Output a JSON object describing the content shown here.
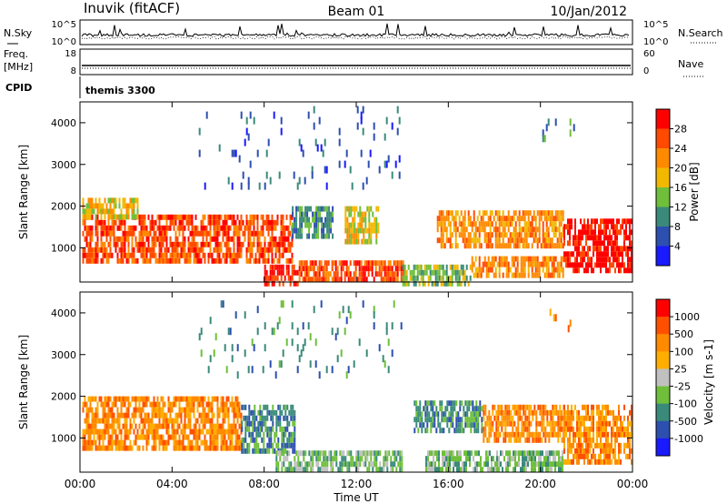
{
  "header": {
    "station": "Inuvik (fitACF)",
    "beam": "Beam 01",
    "date": "10/Jan/2012"
  },
  "noise_panel": {
    "left_label": "N.Sky",
    "right_label": "N.Search",
    "y_ticks": [
      "10^5",
      "10^0"
    ]
  },
  "freq_panel": {
    "left_label_1": "Freq.",
    "left_label_2": "[MHz]",
    "right_label": "Nave",
    "left_ticks": [
      "18",
      "8"
    ],
    "right_ticks": [
      "60",
      "0"
    ]
  },
  "cpid_panel": {
    "label": "CPID",
    "value": "themis 3300"
  },
  "chart_data": [
    {
      "type": "heatmap",
      "quantity": "Power",
      "ylabel": "Slant Range [km]",
      "xlabel": "Time UT",
      "xlim_hours": [
        0,
        24
      ],
      "ylim": [
        180,
        4500
      ],
      "x_ticks": [
        "00:00",
        "04:00",
        "08:00",
        "12:00",
        "16:00",
        "20:00",
        "00:00"
      ],
      "y_ticks": [
        1000,
        2000,
        3000,
        4000
      ],
      "colorbar": {
        "label": "Power [dB]",
        "ticks": [
          "4",
          "8",
          "12",
          "16",
          "20",
          "24",
          "28"
        ],
        "colors": [
          "#1a1aff",
          "#2d4fb0",
          "#3a8a7a",
          "#6fbf3a",
          "#f2b800",
          "#ff8a00",
          "#ff4a00",
          "#ff0000"
        ]
      },
      "regions": [
        {
          "t": [
            0.1,
            9.2
          ],
          "r": [
            700,
            1800
          ],
          "level": 6
        },
        {
          "t": [
            0.1,
            2.5
          ],
          "r": [
            1700,
            2200
          ],
          "level": 4
        },
        {
          "t": [
            8.0,
            9.5
          ],
          "r": [
            200,
            600
          ],
          "level": 7
        },
        {
          "t": [
            9.5,
            14.0
          ],
          "r": [
            250,
            700
          ],
          "level": 6
        },
        {
          "t": [
            9.2,
            11.0
          ],
          "r": [
            1300,
            2000
          ],
          "level": 2
        },
        {
          "t": [
            11.5,
            13.0
          ],
          "r": [
            1200,
            2000
          ],
          "level": 4
        },
        {
          "t": [
            14.0,
            17.0
          ],
          "r": [
            200,
            600
          ],
          "level": 3
        },
        {
          "t": [
            15.5,
            21.0
          ],
          "r": [
            1000,
            1900
          ],
          "level": 5
        },
        {
          "t": [
            17.0,
            21.0
          ],
          "r": [
            300,
            800
          ],
          "level": 5
        },
        {
          "t": [
            21.0,
            24.0
          ],
          "r": [
            500,
            1700
          ],
          "level": 7
        },
        {
          "t": [
            5.0,
            14.0
          ],
          "r": [
            2500,
            4400
          ],
          "level": 1,
          "sparse": true
        },
        {
          "t": [
            20.0,
            21.5
          ],
          "r": [
            3600,
            4100
          ],
          "level": 2,
          "sparse": true
        }
      ]
    },
    {
      "type": "heatmap",
      "quantity": "Velocity",
      "ylabel": "Slant Range [km]",
      "xlabel": "Time UT",
      "xlim_hours": [
        0,
        24
      ],
      "ylim": [
        180,
        4500
      ],
      "x_ticks": [
        "00:00",
        "04:00",
        "08:00",
        "12:00",
        "16:00",
        "20:00",
        "00:00"
      ],
      "y_ticks": [
        1000,
        2000,
        3000,
        4000
      ],
      "colorbar": {
        "label": "Velocity [m s-1]",
        "ticks": [
          "1000",
          "500",
          "100",
          "25",
          "-25",
          "-100",
          "-500",
          "-1000"
        ],
        "colors": [
          "#1a1aff",
          "#2d4fb0",
          "#3a8a7a",
          "#6fbf3a",
          "#c0c0c0",
          "#ffae00",
          "#ff8a00",
          "#ff5000",
          "#ff0000"
        ]
      },
      "regions": [
        {
          "t": [
            0.1,
            7.0
          ],
          "r": [
            700,
            2000
          ],
          "level": 6
        },
        {
          "t": [
            7.0,
            9.3
          ],
          "r": [
            700,
            1800
          ],
          "level": 2
        },
        {
          "t": [
            8.5,
            14.0
          ],
          "r": [
            200,
            700
          ],
          "level": 3
        },
        {
          "t": [
            14.5,
            17.5
          ],
          "r": [
            1200,
            1900
          ],
          "level": 2
        },
        {
          "t": [
            17.5,
            21.0
          ],
          "r": [
            1000,
            1800
          ],
          "level": 6
        },
        {
          "t": [
            15.0,
            21.0
          ],
          "r": [
            200,
            700
          ],
          "level": 3
        },
        {
          "t": [
            21.0,
            24.0
          ],
          "r": [
            400,
            1800
          ],
          "level": 6
        },
        {
          "t": [
            5.0,
            14.0
          ],
          "r": [
            2500,
            4300
          ],
          "level": 2,
          "sparse": true
        },
        {
          "t": [
            20.0,
            21.5
          ],
          "r": [
            3600,
            4100
          ],
          "level": 6,
          "sparse": true
        }
      ]
    }
  ]
}
